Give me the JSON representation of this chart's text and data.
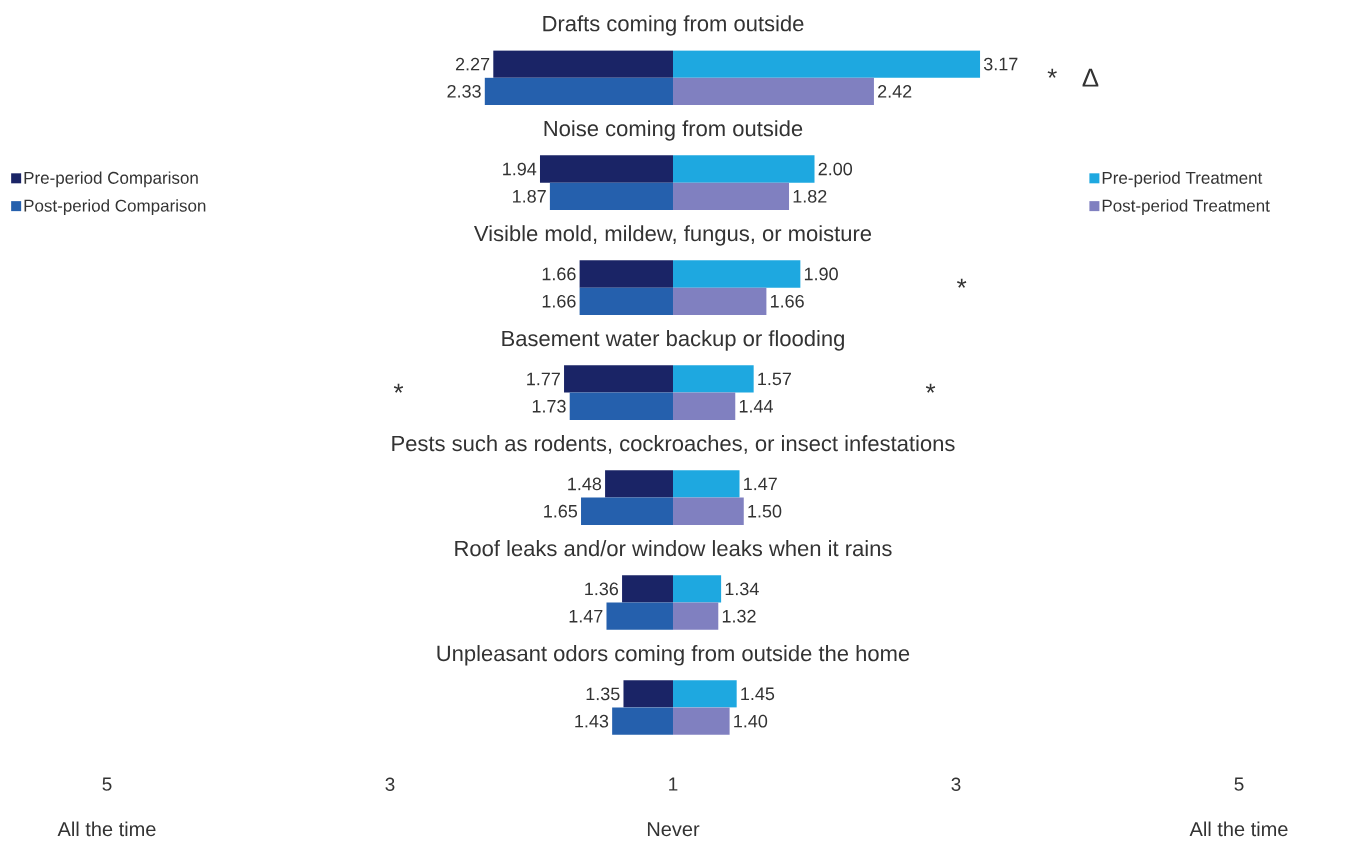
{
  "chart_data": [
    {
      "type": "bar",
      "orientation": "horizontal",
      "legend": "left",
      "categories": [
        "Drafts coming from outside",
        "Noise coming from outside",
        "Visible mold, mildew, fungus, or moisture",
        "Basement water backup or flooding",
        "Pests such as rodents, cockroaches, or insect infestations",
        "Roof leaks and/or window leaks when it rains",
        "Unpleasant odors coming from outside the home"
      ],
      "xlim": [
        5,
        1
      ],
      "xticks": [
        5,
        3,
        1
      ],
      "series": [
        {
          "name": "Pre-period Comparison",
          "color": "#1a2466",
          "values": [
            2.27,
            1.94,
            1.66,
            1.77,
            1.48,
            1.36,
            1.35
          ],
          "value_labels": [
            "2.27",
            "1.94",
            "1.66",
            "1.77",
            "1.48",
            "1.36",
            "1.35"
          ]
        },
        {
          "name": "Post-period Comparison",
          "color": "#2560ad",
          "values": [
            2.33,
            1.87,
            1.66,
            1.73,
            1.65,
            1.47,
            1.43
          ],
          "value_labels": [
            "2.33",
            "1.87",
            "1.66",
            "1.73",
            "1.65",
            "1.47",
            "1.43"
          ]
        }
      ],
      "annotations": [
        "*",
        "All the time",
        "Never"
      ]
    },
    {
      "type": "bar",
      "orientation": "horizontal",
      "legend": "right",
      "tick_labels": "x",
      "categories": [
        null,
        null,
        null,
        null,
        null,
        null,
        null
      ],
      "xlim": [
        1,
        5
      ],
      "xticks": [
        3,
        5
      ],
      "series": [
        {
          "name": "Pre-period Treatment",
          "color": "#1ea8e0",
          "values": [
            3.17,
            2.0,
            1.9,
            1.57,
            1.47,
            1.34,
            1.45
          ],
          "value_labels": [
            "3.17",
            "2.00",
            "1.90",
            "1.57",
            "1.47",
            "1.34",
            "1.45"
          ]
        },
        {
          "name": "Post-period Treatment",
          "color": "#8080c0",
          "values": [
            2.42,
            1.82,
            1.66,
            1.44,
            1.5,
            1.32,
            1.4
          ],
          "value_labels": [
            "2.42",
            "1.82",
            "1.66",
            "1.44",
            "1.50",
            "1.32",
            "1.40"
          ]
        }
      ],
      "annotations": [
        "*",
        "Δ",
        "*",
        "*",
        "All the time"
      ]
    }
  ]
}
